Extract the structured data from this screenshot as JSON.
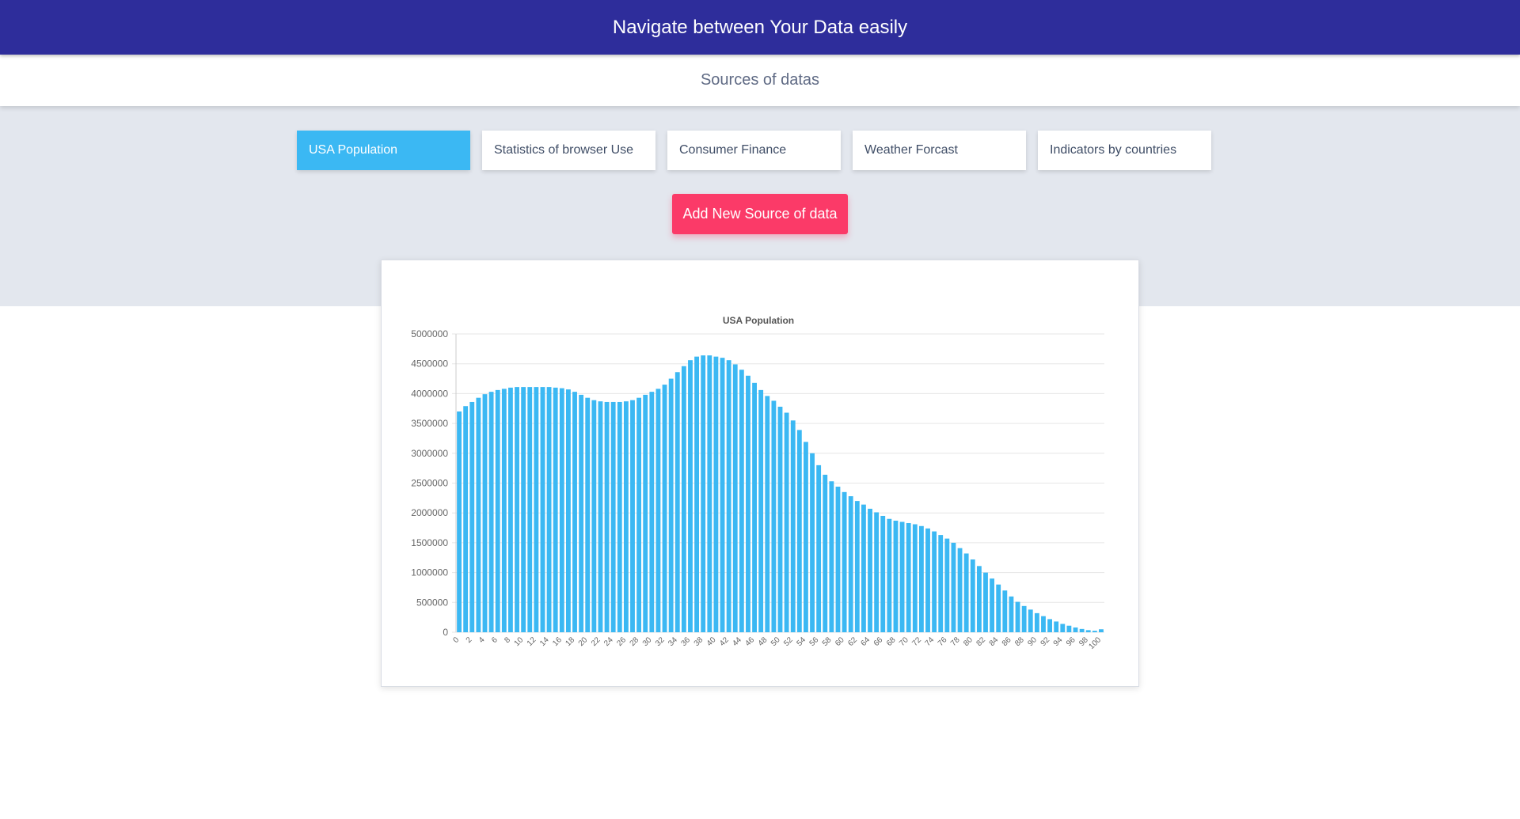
{
  "header": {
    "title": "Navigate between Your Data easily"
  },
  "subheader": {
    "title": "Sources of datas"
  },
  "colors": {
    "header_bg": "#2e2d9b",
    "tab_active": "#3bb8f3",
    "button_bg": "#fb3a68",
    "bar": "#3bb8f3",
    "band": "#e3e7ee"
  },
  "tabs": [
    {
      "label": "USA Population",
      "active": true
    },
    {
      "label": "Statistics of browser Use",
      "active": false
    },
    {
      "label": "Consumer Finance",
      "active": false
    },
    {
      "label": "Weather Forcast",
      "active": false
    },
    {
      "label": "Indicators by countries",
      "active": false
    }
  ],
  "add_button": {
    "label": "Add New Source of data"
  },
  "chart_data": {
    "type": "bar",
    "title": "USA Population",
    "xlabel": "",
    "ylabel": "",
    "ylim": [
      0,
      5000000
    ],
    "yticks": [
      0,
      500000,
      1000000,
      1500000,
      2000000,
      2500000,
      3000000,
      3500000,
      4000000,
      4500000,
      5000000
    ],
    "tick_every": 2,
    "grid": true,
    "categories": [
      "0",
      "1",
      "2",
      "3",
      "4",
      "5",
      "6",
      "7",
      "8",
      "9",
      "10",
      "11",
      "12",
      "13",
      "14",
      "15",
      "16",
      "17",
      "18",
      "19",
      "20",
      "21",
      "22",
      "23",
      "24",
      "25",
      "26",
      "27",
      "28",
      "29",
      "30",
      "31",
      "32",
      "33",
      "34",
      "35",
      "36",
      "37",
      "38",
      "39",
      "40",
      "41",
      "42",
      "43",
      "44",
      "45",
      "46",
      "47",
      "48",
      "49",
      "50",
      "51",
      "52",
      "53",
      "54",
      "55",
      "56",
      "57",
      "58",
      "59",
      "60",
      "61",
      "62",
      "63",
      "64",
      "65",
      "66",
      "67",
      "68",
      "69",
      "70",
      "71",
      "72",
      "73",
      "74",
      "75",
      "76",
      "77",
      "78",
      "79",
      "80",
      "81",
      "82",
      "83",
      "84",
      "85",
      "86",
      "87",
      "88",
      "89",
      "90",
      "91",
      "92",
      "93",
      "94",
      "95",
      "96",
      "97",
      "98",
      "99",
      "100"
    ],
    "values": [
      3700000,
      3790000,
      3860000,
      3930000,
      3990000,
      4030000,
      4060000,
      4080000,
      4100000,
      4110000,
      4110000,
      4110000,
      4110000,
      4110000,
      4110000,
      4100000,
      4090000,
      4070000,
      4030000,
      3980000,
      3930000,
      3890000,
      3870000,
      3860000,
      3860000,
      3860000,
      3870000,
      3890000,
      3930000,
      3980000,
      4030000,
      4080000,
      4150000,
      4250000,
      4360000,
      4460000,
      4560000,
      4620000,
      4640000,
      4640000,
      4620000,
      4600000,
      4560000,
      4490000,
      4400000,
      4300000,
      4180000,
      4060000,
      3960000,
      3880000,
      3780000,
      3680000,
      3550000,
      3390000,
      3190000,
      3000000,
      2800000,
      2640000,
      2530000,
      2440000,
      2350000,
      2280000,
      2200000,
      2140000,
      2070000,
      2010000,
      1950000,
      1900000,
      1870000,
      1850000,
      1830000,
      1810000,
      1780000,
      1740000,
      1690000,
      1630000,
      1570000,
      1500000,
      1410000,
      1320000,
      1220000,
      1110000,
      1000000,
      900000,
      800000,
      700000,
      600000,
      510000,
      440000,
      380000,
      320000,
      270000,
      220000,
      180000,
      140000,
      110000,
      80000,
      55000,
      35000,
      25000,
      50000
    ]
  }
}
